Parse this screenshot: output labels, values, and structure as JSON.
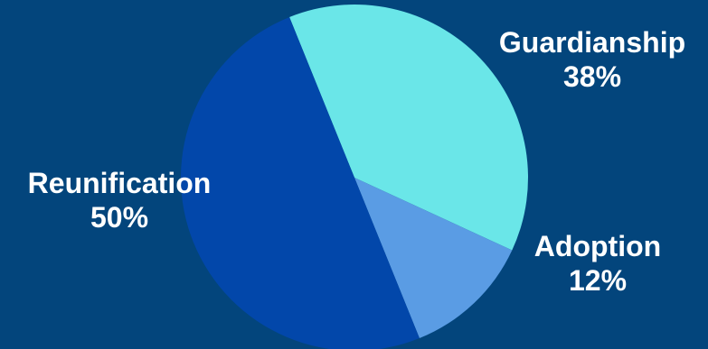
{
  "chart_data": {
    "type": "pie",
    "title": "",
    "slices": [
      {
        "label": "Guardianship",
        "value": 38,
        "display": "38%",
        "color": "#6ae6e8"
      },
      {
        "label": "Adoption",
        "value": 12,
        "display": "12%",
        "color": "#5a9ce4"
      },
      {
        "label": "Reunification",
        "value": 50,
        "display": "50%",
        "color": "#0247aa"
      }
    ],
    "background": "#03457c",
    "start_angle_deg": -22
  }
}
